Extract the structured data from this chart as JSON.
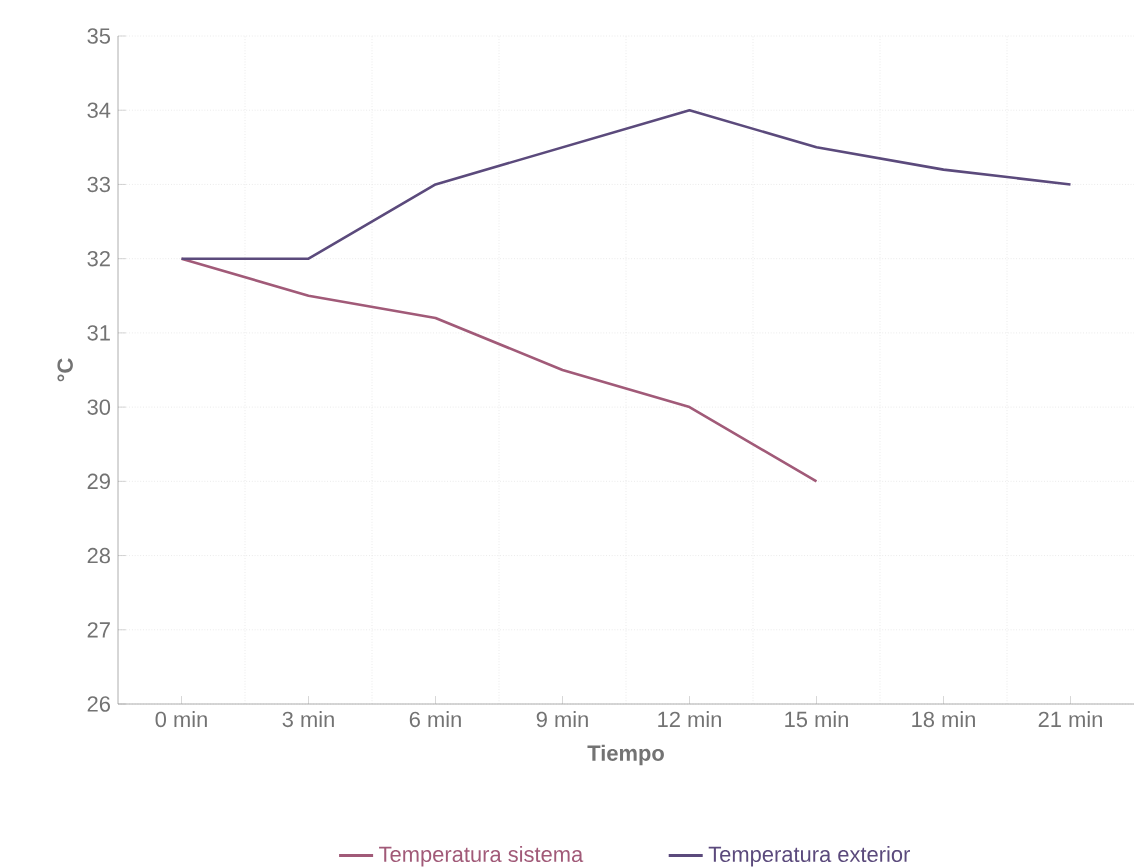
{
  "chart_data": {
    "type": "line",
    "xlabel": "Tiempo",
    "ylabel": "°C",
    "categories": [
      "0 min",
      "3 min",
      "6 min",
      "9 min",
      "12 min",
      "15 min",
      "18 min",
      "21 min"
    ],
    "series": [
      {
        "name": "Temperatura sistema",
        "color": "#a15a78",
        "values": [
          32,
          31.5,
          31.2,
          30.5,
          30,
          29,
          null,
          null
        ]
      },
      {
        "name": "Temperatura exterior",
        "color": "#5b4a7c",
        "values": [
          32,
          32,
          33,
          33.5,
          34,
          33.5,
          33.2,
          33
        ]
      }
    ],
    "ylim": [
      26,
      35
    ],
    "yticks": [
      26,
      27,
      28,
      29,
      30,
      31,
      32,
      33,
      34,
      35
    ],
    "grid": true,
    "legend": "bottom",
    "marker": "none",
    "line_style": "solid"
  }
}
